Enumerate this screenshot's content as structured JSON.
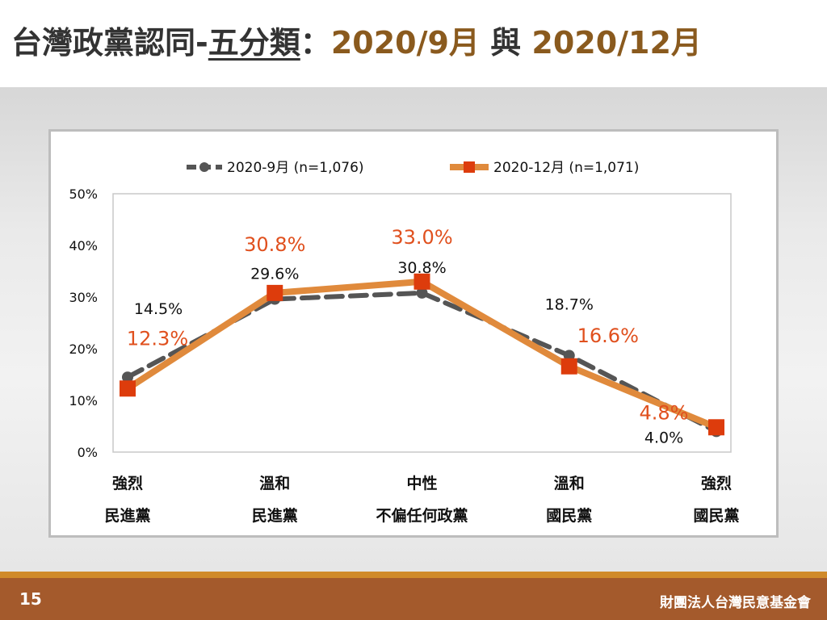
{
  "slide": {
    "title_part1": "台灣政黨認同-",
    "title_part2": "五分類",
    "title_part3": "：",
    "title_part4": "2020/9月",
    "title_part5": " 與 ",
    "title_part6": "2020/12月",
    "page_number": "15",
    "organization": "財團法人台灣民意基金會"
  },
  "colors": {
    "series_sep": "#555555",
    "series_dec": "#e08a3c",
    "series_dec_marker": "#dd3c0c",
    "label_dec": "#e0501e",
    "title_brown": "#8a5a1e",
    "footer": "#a45a2c",
    "footer_stripe": "#d08a2a"
  },
  "chart_data": {
    "type": "line",
    "categories": [
      [
        "強烈",
        "民進黨"
      ],
      [
        "溫和",
        "民進黨"
      ],
      [
        "中性",
        "不偏任何政黨"
      ],
      [
        "溫和",
        "國民黨"
      ],
      [
        "強烈",
        "國民黨"
      ]
    ],
    "ylim": [
      0,
      50
    ],
    "yticks": [
      "0%",
      "10%",
      "20%",
      "30%",
      "40%",
      "50%"
    ],
    "ytick_values": [
      0,
      10,
      20,
      30,
      40,
      50
    ],
    "grid": "outer box only",
    "legend_position": "top",
    "series": [
      {
        "name": "2020-9月 (n=1,076)",
        "style": "dashed line, circle markers",
        "values": [
          14.5,
          29.6,
          30.8,
          18.7,
          4.0
        ],
        "labels": [
          "14.5%",
          "29.6%",
          "30.8%",
          "18.7%",
          "4.0%"
        ]
      },
      {
        "name": "2020-12月 (n=1,071)",
        "style": "solid line, square markers",
        "values": [
          12.3,
          30.8,
          33.0,
          16.6,
          4.8
        ],
        "labels": [
          "12.3%",
          "30.8%",
          "33.0%",
          "16.6%",
          "4.8%"
        ]
      }
    ]
  }
}
